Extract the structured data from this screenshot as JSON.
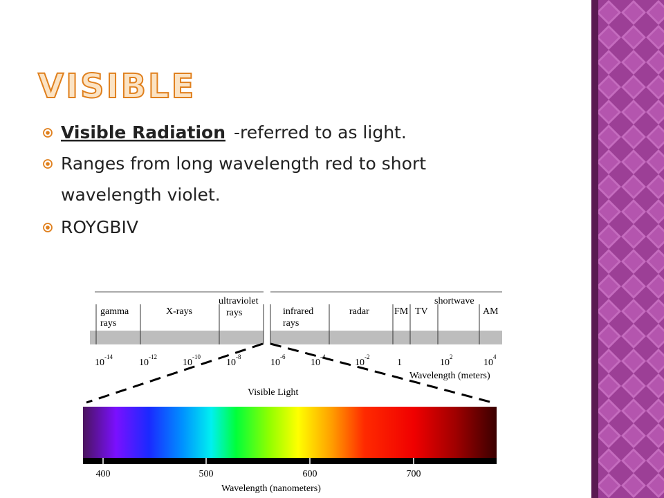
{
  "slide": {
    "title": "VISIBLE",
    "bullets": [
      {
        "term": "Visible Radiation",
        "text": "-referred to as light."
      },
      {
        "lines": [
          "Ranges from long wavelength red to short",
          "wavelength violet."
        ]
      },
      {
        "text": "ROYGBIV"
      }
    ],
    "diagram": {
      "bands": [
        {
          "lines": [
            "gamma",
            "rays"
          ]
        },
        {
          "lines": [
            "X-rays"
          ]
        },
        {
          "lines": [
            "ultraviolet",
            "rays"
          ]
        },
        {
          "lines": [
            "infrared",
            "rays"
          ]
        },
        {
          "lines": [
            "radar"
          ]
        },
        {
          "lines": [
            "FM"
          ]
        },
        {
          "lines": [
            "TV"
          ]
        },
        {
          "lines": [
            "shortwave"
          ]
        },
        {
          "lines": [
            "AM"
          ]
        }
      ],
      "meter_ticks": [
        {
          "base": "10",
          "exp": "-14"
        },
        {
          "base": "10",
          "exp": "-12"
        },
        {
          "base": "10",
          "exp": "-10"
        },
        {
          "base": "10",
          "exp": "-8"
        },
        {
          "base": "10",
          "exp": "-6"
        },
        {
          "base": "10",
          "exp": "-4"
        },
        {
          "base": "10",
          "exp": "-2"
        },
        {
          "base": "1"
        },
        {
          "base": "10",
          "exp": "2"
        },
        {
          "base": "10",
          "exp": "4"
        }
      ],
      "meter_label": "Wavelength (meters)",
      "visible_label": "Visible Light",
      "nm_ticks": [
        "400",
        "500",
        "600",
        "700"
      ],
      "nm_label": "Wavelength (nanometers)"
    }
  }
}
